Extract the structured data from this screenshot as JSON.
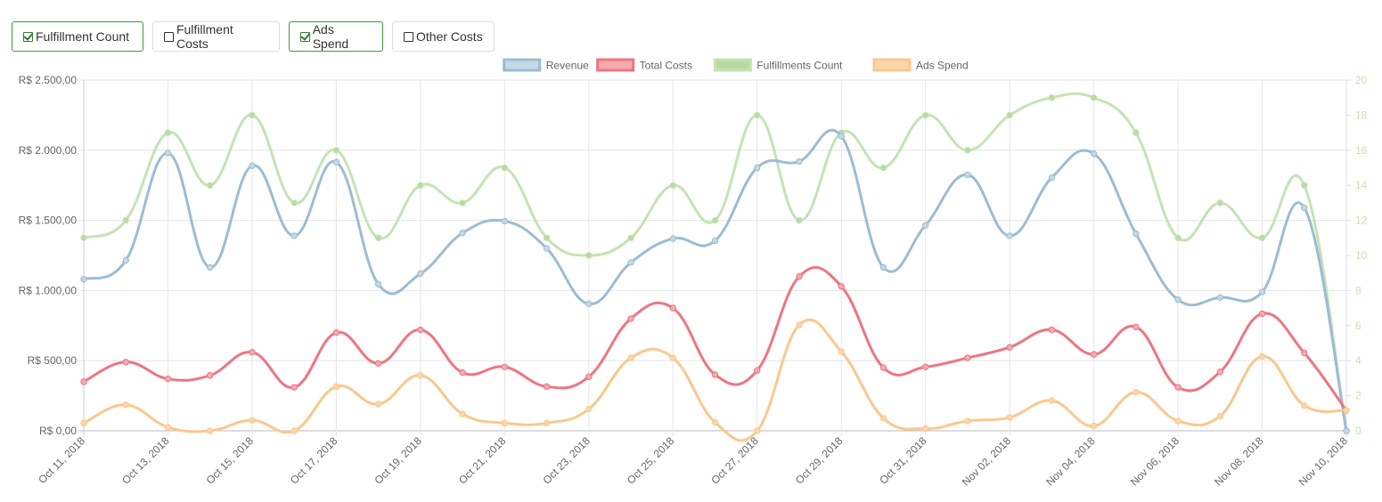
{
  "toolbar": {
    "buttons": [
      {
        "label": "Fulfillment Count",
        "checked": true
      },
      {
        "label": "Fulfillment Costs",
        "checked": false
      },
      {
        "label": "Ads Spend",
        "checked": true
      },
      {
        "label": "Other Costs",
        "checked": false
      }
    ]
  },
  "chart_data": {
    "type": "line",
    "title": "",
    "legend_position": "top",
    "grid": true,
    "x": [
      "Oct 11, 2018",
      "Oct 12, 2018",
      "Oct 13, 2018",
      "Oct 14, 2018",
      "Oct 15, 2018",
      "Oct 16, 2018",
      "Oct 17, 2018",
      "Oct 18, 2018",
      "Oct 19, 2018",
      "Oct 20, 2018",
      "Oct 21, 2018",
      "Oct 22, 2018",
      "Oct 23, 2018",
      "Oct 24, 2018",
      "Oct 25, 2018",
      "Oct 26, 2018",
      "Oct 27, 2018",
      "Oct 28, 2018",
      "Oct 29, 2018",
      "Oct 30, 2018",
      "Oct 31, 2018",
      "Nov 01, 2018",
      "Nov 02, 2018",
      "Nov 03, 2018",
      "Nov 04, 2018",
      "Nov 05, 2018",
      "Nov 06, 2018",
      "Nov 07, 2018",
      "Nov 08, 2018",
      "Nov 09, 2018",
      "Nov 10, 2018"
    ],
    "x_tick_labels": [
      "Oct 11, 2018",
      "Oct 13, 2018",
      "Oct 15, 2018",
      "Oct 17, 2018",
      "Oct 19, 2018",
      "Oct 21, 2018",
      "Oct 23, 2018",
      "Oct 25, 2018",
      "Oct 27, 2018",
      "Oct 29, 2018",
      "Oct 31, 2018",
      "Nov 02, 2018",
      "Nov 04, 2018",
      "Nov 06, 2018",
      "Nov 08, 2018",
      "Nov 10, 2018"
    ],
    "y_left": {
      "ylim": [
        0,
        2500
      ],
      "ticks": [
        "R$ 0,00",
        "R$ 500,00",
        "R$ 1.000,00",
        "R$ 1.500,00",
        "R$ 2.000,00",
        "R$ 2.500,00"
      ]
    },
    "y_right": {
      "ylim": [
        0,
        20
      ],
      "ticks": [
        "0",
        "2",
        "4",
        "6",
        "8",
        "10",
        "12",
        "14",
        "16",
        "18",
        "20"
      ],
      "color": "#c5e3b3"
    },
    "series": [
      {
        "name": "Revenue",
        "axis": "left",
        "color": "#9bbdd3",
        "fill": "#c5d8e6",
        "values": [
          1080,
          1215,
          1980,
          1165,
          1890,
          1390,
          1915,
          1045,
          1120,
          1410,
          1495,
          1300,
          905,
          1200,
          1370,
          1355,
          1875,
          1920,
          2100,
          1165,
          1465,
          1825,
          1390,
          1805,
          1975,
          1405,
          935,
          950,
          990,
          1590,
          0
        ]
      },
      {
        "name": "Total Costs",
        "axis": "left",
        "color": "#ee7582",
        "fill": "#f5a9b1",
        "values": [
          350,
          490,
          370,
          395,
          560,
          310,
          700,
          480,
          720,
          415,
          455,
          315,
          385,
          800,
          875,
          400,
          430,
          1100,
          1030,
          450,
          455,
          520,
          595,
          720,
          545,
          740,
          310,
          420,
          835,
          555,
          145
        ]
      },
      {
        "name": "Fulfillments Count",
        "axis": "right",
        "color": "#c5e3b3",
        "fill": "#b7dba3",
        "values": [
          11,
          12,
          17,
          14,
          18,
          13,
          16,
          11,
          14,
          13,
          15,
          11,
          10,
          11,
          14,
          12,
          18,
          12,
          17,
          15,
          18,
          16,
          18,
          19,
          19,
          17,
          11,
          13,
          11,
          14,
          0
        ]
      },
      {
        "name": "Ads Spend",
        "axis": "left",
        "color": "#f9c88f",
        "fill": "#fbd6a8",
        "values": [
          55,
          185,
          25,
          0,
          75,
          0,
          315,
          190,
          395,
          120,
          55,
          55,
          155,
          520,
          520,
          60,
          0,
          755,
          565,
          90,
          15,
          70,
          95,
          215,
          35,
          275,
          70,
          105,
          530,
          180,
          145
        ]
      }
    ]
  }
}
